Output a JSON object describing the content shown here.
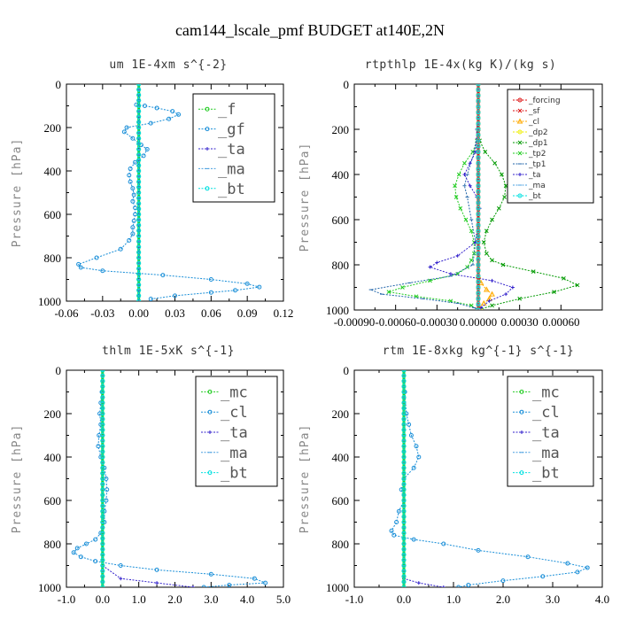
{
  "title": "cam144_lscale_pmf  BUDGET at140E,2N",
  "colors": {
    "green": "#22cc22",
    "blue": "#1a8fd8",
    "purple": "#3322cc",
    "ltblue": "#4aa0e0",
    "cyan": "#00e0e0",
    "red": "#dd1111",
    "orange": "#ffaa00",
    "yellow": "#eeee00",
    "dkgreen": "#009900",
    "teal": "#2266aa"
  },
  "chart_data": [
    {
      "type": "line",
      "title": "um   1E-4xm s^{-2}",
      "ylabel": "Pressure [hPa]",
      "xlabel": "",
      "xlim": [
        -0.06,
        0.12
      ],
      "ylim": [
        1000,
        0
      ],
      "xticks": [
        -0.06,
        -0.03,
        0.0,
        0.03,
        0.06,
        0.09,
        0.12
      ],
      "xtick_labels": [
        "-0.06",
        "-0.03",
        "0.00",
        "0.03",
        "0.06",
        "0.09",
        "0.12"
      ],
      "yticks": [
        0,
        200,
        400,
        600,
        800,
        1000
      ],
      "legend_placement": "top-right",
      "legend_style": "big",
      "series": [
        {
          "name": "_f",
          "color": "green",
          "marker": "o",
          "width": 3,
          "y": [
            0,
            1000
          ],
          "x": [
            0,
            0
          ]
        },
        {
          "name": "_gf",
          "color": "blue",
          "marker": "o",
          "width": 1,
          "y": [
            95,
            100,
            110,
            125,
            140,
            160,
            180,
            200,
            220,
            250,
            280,
            300,
            330,
            360,
            390,
            420,
            450,
            480,
            510,
            540,
            570,
            600,
            630,
            660,
            690,
            720,
            760,
            800,
            830,
            845,
            860,
            880,
            900,
            920,
            935,
            950,
            960,
            975,
            990
          ],
          "x": [
            -0.002,
            0.005,
            0.015,
            0.028,
            0.033,
            0.025,
            0.01,
            -0.01,
            -0.012,
            -0.005,
            0.002,
            0.007,
            0.004,
            -0.003,
            -0.007,
            -0.008,
            -0.007,
            -0.005,
            -0.004,
            -0.005,
            -0.003,
            -0.003,
            -0.004,
            -0.005,
            -0.005,
            -0.008,
            -0.015,
            -0.035,
            -0.05,
            -0.048,
            -0.03,
            0.02,
            0.06,
            0.09,
            0.1,
            0.08,
            0.06,
            0.03,
            0.01
          ]
        },
        {
          "name": "_ta",
          "color": "purple",
          "marker": "+",
          "width": 1,
          "y": [
            0,
            1000
          ],
          "x": [
            0,
            0
          ]
        },
        {
          "name": "_ma",
          "color": "ltblue",
          "marker": "-",
          "width": 1,
          "y": [
            0,
            1000
          ],
          "x": [
            0,
            0
          ]
        },
        {
          "name": "_bt",
          "color": "cyan",
          "marker": "o",
          "width": 1,
          "y": [
            0,
            1000
          ],
          "x": [
            0,
            0
          ]
        }
      ]
    },
    {
      "type": "line",
      "title": "rtpthlp   1E-4x(kg K)/(kg s)",
      "ylabel": "Pressure [hPa]",
      "xlabel": "",
      "xlim": [
        -0.0009,
        0.0009
      ],
      "ylim": [
        1000,
        0
      ],
      "xticks": [
        -0.0009,
        -0.0006,
        -0.0003,
        0.0,
        0.0003,
        0.0006
      ],
      "xtick_labels": [
        "-0.00090",
        "-0.00060",
        "-0.00030",
        "0.00000",
        "0.00030",
        "0.00060"
      ],
      "yticks": [
        0,
        200,
        400,
        600,
        800,
        1000
      ],
      "legend_placement": "top-right",
      "legend_style": "small",
      "series": [
        {
          "name": "_forcing",
          "color": "red",
          "marker": "o",
          "width": 1,
          "y": [
            0,
            1000
          ],
          "x": [
            0,
            0
          ]
        },
        {
          "name": "_sf",
          "color": "red",
          "marker": "x",
          "width": 3,
          "y": [
            0,
            1000
          ],
          "x": [
            0,
            0
          ]
        },
        {
          "name": "_cl",
          "color": "orange",
          "marker": "^",
          "width": 1,
          "y": [
            850,
            880,
            910,
            930,
            950,
            970,
            990,
            1000
          ],
          "x": [
            0.0,
            2e-05,
            6e-05,
            0.0001,
            8e-05,
            4e-05,
            1e-05,
            0.0
          ]
        },
        {
          "name": "_dp2",
          "color": "yellow",
          "marker": "o",
          "width": 1,
          "y": [
            0,
            1000
          ],
          "x": [
            0,
            0
          ]
        },
        {
          "name": "_dp1",
          "color": "dkgreen",
          "marker": "x",
          "width": 1,
          "y": [
            200,
            250,
            300,
            350,
            400,
            450,
            500,
            550,
            600,
            650,
            700,
            750,
            780,
            800,
            830,
            860,
            890,
            920,
            950,
            980,
            1000
          ],
          "x": [
            0.0,
            1e-05,
            5e-05,
            0.00012,
            0.00017,
            0.0002,
            0.00019,
            0.00015,
            0.0001,
            6e-05,
            4e-05,
            6e-05,
            0.0001,
            0.00018,
            0.0004,
            0.00062,
            0.00072,
            0.00055,
            0.0003,
            0.0001,
            0.0
          ]
        },
        {
          "name": "_tp2",
          "color": "green",
          "marker": "x",
          "width": 1,
          "y": [
            200,
            250,
            300,
            350,
            400,
            450,
            500,
            550,
            600,
            650,
            700,
            750,
            780,
            810,
            840,
            870,
            900,
            920,
            940,
            960,
            980,
            1000
          ],
          "x": [
            0.0,
            -1e-05,
            -4e-05,
            -0.0001,
            -0.00014,
            -0.00017,
            -0.00016,
            -0.00013,
            -9e-05,
            -5e-05,
            -3e-05,
            -3e-05,
            -5e-05,
            -8e-05,
            -0.00015,
            -0.00035,
            -0.00055,
            -0.00065,
            -0.00045,
            -0.0002,
            -5e-05,
            0.0
          ]
        },
        {
          "name": "_tp1",
          "color": "teal",
          "marker": "-",
          "width": 1,
          "y": [
            200,
            300,
            400,
            450,
            500,
            600,
            700,
            800,
            850,
            880,
            910,
            930,
            950,
            970,
            990,
            1000
          ],
          "x": [
            0.0,
            -3e-05,
            -8e-05,
            -0.0001,
            -8e-05,
            -5e-05,
            -2e-05,
            -4e-05,
            -0.0002,
            -0.0005,
            -0.00078,
            -0.0007,
            -0.0004,
            -0.00015,
            -3e-05,
            0.0
          ]
        },
        {
          "name": "_ta",
          "color": "purple",
          "marker": "+",
          "width": 1,
          "y": [
            100,
            200,
            300,
            350,
            400,
            450,
            500,
            550,
            600,
            700,
            760,
            790,
            810,
            840,
            870,
            900,
            930,
            960,
            990,
            1000
          ],
          "x": [
            0.0,
            -1e-05,
            -2e-05,
            -6e-05,
            -0.0001,
            -6e-05,
            -1e-05,
            1e-05,
            0.0,
            -2e-05,
            -0.00015,
            -0.0003,
            -0.00035,
            -0.0002,
            0.0001,
            0.00025,
            0.0002,
            8e-05,
            2e-05,
            0.0
          ]
        },
        {
          "name": "_ma",
          "color": "ltblue",
          "marker": "-",
          "width": 1,
          "y": [
            0,
            1000
          ],
          "x": [
            0,
            0
          ]
        },
        {
          "name": "_bt",
          "color": "cyan",
          "marker": "o",
          "width": 1,
          "y": [
            0,
            1000
          ],
          "x": [
            0,
            0
          ]
        }
      ]
    },
    {
      "type": "line",
      "title": "thlm   1E-5xK s^{-1}",
      "ylabel": "Pressure [hPa]",
      "xlabel": "",
      "xlim": [
        -1.0,
        5.0
      ],
      "ylim": [
        1000,
        0
      ],
      "xticks": [
        -1.0,
        0.0,
        1.0,
        2.0,
        3.0,
        4.0,
        5.0
      ],
      "xtick_labels": [
        "-1.0",
        "0.0",
        "1.0",
        "2.0",
        "3.0",
        "4.0",
        "5.0"
      ],
      "yticks": [
        0,
        200,
        400,
        600,
        800,
        1000
      ],
      "legend_placement": "top-right",
      "legend_style": "big",
      "series": [
        {
          "name": "_mc",
          "color": "green",
          "marker": "o",
          "width": 3,
          "y": [
            0,
            1000
          ],
          "x": [
            0,
            0
          ]
        },
        {
          "name": "_cl",
          "color": "blue",
          "marker": "o",
          "width": 1,
          "y": [
            0,
            50,
            100,
            150,
            200,
            250,
            300,
            350,
            400,
            450,
            500,
            550,
            600,
            650,
            700,
            750,
            780,
            800,
            820,
            840,
            860,
            880,
            900,
            920,
            940,
            960,
            980,
            990,
            1000
          ],
          "x": [
            0.0,
            0.0,
            -0.02,
            -0.05,
            -0.08,
            -0.05,
            -0.1,
            -0.12,
            -0.05,
            0.05,
            0.1,
            0.12,
            0.1,
            0.05,
            0.05,
            -0.05,
            -0.2,
            -0.45,
            -0.7,
            -0.8,
            -0.6,
            -0.2,
            0.5,
            1.5,
            3.0,
            4.2,
            4.5,
            3.5,
            2.8
          ]
        },
        {
          "name": "_ta",
          "color": "purple",
          "marker": "+",
          "width": 1,
          "y": [
            0,
            900,
            960,
            980,
            1000
          ],
          "x": [
            0.0,
            0.0,
            0.5,
            1.5,
            2.5
          ]
        },
        {
          "name": "_ma",
          "color": "ltblue",
          "marker": "-",
          "width": 1,
          "y": [
            0,
            1000
          ],
          "x": [
            0,
            0
          ]
        },
        {
          "name": "_bt",
          "color": "cyan",
          "marker": "o",
          "width": 1,
          "y": [
            0,
            1000
          ],
          "x": [
            0,
            0
          ]
        }
      ]
    },
    {
      "type": "line",
      "title": "rtm   1E-8xkg kg^{-1} s^{-1}",
      "ylabel": "Pressure [hPa]",
      "xlabel": "",
      "xlim": [
        -1.0,
        4.0
      ],
      "ylim": [
        1000,
        0
      ],
      "xticks": [
        -1.0,
        0.0,
        1.0,
        2.0,
        3.0,
        4.0
      ],
      "xtick_labels": [
        "-1.0",
        "0.0",
        "1.0",
        "2.0",
        "3.0",
        "4.0"
      ],
      "yticks": [
        0,
        200,
        400,
        600,
        800,
        1000
      ],
      "legend_placement": "top-right",
      "legend_style": "big",
      "series": [
        {
          "name": "_mc",
          "color": "green",
          "marker": "o",
          "width": 3,
          "y": [
            0,
            1000
          ],
          "x": [
            0,
            0
          ]
        },
        {
          "name": "_cl",
          "color": "blue",
          "marker": "o",
          "width": 1,
          "y": [
            0,
            100,
            200,
            250,
            300,
            350,
            400,
            450,
            500,
            550,
            600,
            650,
            700,
            740,
            760,
            780,
            800,
            830,
            860,
            890,
            910,
            930,
            950,
            970,
            990,
            1000
          ],
          "x": [
            0.0,
            0.02,
            0.05,
            0.1,
            0.15,
            0.25,
            0.3,
            0.2,
            0.0,
            -0.05,
            0.0,
            -0.1,
            -0.15,
            -0.25,
            -0.2,
            0.2,
            0.8,
            1.5,
            2.5,
            3.3,
            3.7,
            3.5,
            2.8,
            2.0,
            1.3,
            1.1
          ]
        },
        {
          "name": "_ta",
          "color": "purple",
          "marker": "+",
          "width": 1,
          "y": [
            0,
            960,
            980,
            1000
          ],
          "x": [
            0.0,
            0.0,
            0.3,
            0.8
          ]
        },
        {
          "name": "_ma",
          "color": "ltblue",
          "marker": "-",
          "width": 1,
          "y": [
            0,
            1000
          ],
          "x": [
            0,
            0
          ]
        },
        {
          "name": "_bt",
          "color": "cyan",
          "marker": "o",
          "width": 1,
          "y": [
            0,
            1000
          ],
          "x": [
            0,
            0
          ]
        }
      ]
    }
  ]
}
